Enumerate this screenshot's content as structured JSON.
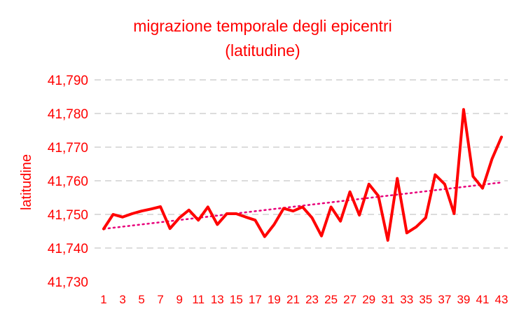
{
  "chart_data": {
    "type": "line",
    "title_lines": [
      "migrazione temporale degli epicentri",
      "(latitudine)"
    ],
    "ylabel": "latitudine",
    "xlabel": "",
    "ylim": [
      41.73,
      41.79
    ],
    "yticks": [
      "41,790",
      "41,780",
      "41,770",
      "41,760",
      "41,750",
      "41,740",
      "41,730"
    ],
    "ytick_values": [
      41.79,
      41.78,
      41.77,
      41.76,
      41.75,
      41.74,
      41.73
    ],
    "x": [
      1,
      2,
      3,
      4,
      5,
      6,
      7,
      8,
      9,
      10,
      11,
      12,
      13,
      14,
      15,
      16,
      17,
      18,
      19,
      20,
      21,
      22,
      23,
      24,
      25,
      26,
      27,
      28,
      29,
      30,
      31,
      32,
      33,
      34,
      35,
      36,
      37,
      38,
      39,
      40,
      41,
      42,
      43
    ],
    "xticks": [
      "1",
      "3",
      "5",
      "7",
      "9",
      "11",
      "13",
      "15",
      "17",
      "19",
      "21",
      "23",
      "25",
      "27",
      "29",
      "31",
      "33",
      "35",
      "37",
      "39",
      "41",
      "43"
    ],
    "xtick_values": [
      1,
      3,
      5,
      7,
      9,
      11,
      13,
      15,
      17,
      19,
      21,
      23,
      25,
      27,
      29,
      31,
      33,
      35,
      37,
      39,
      41,
      43
    ],
    "grid": true,
    "legend": "none",
    "series": [
      {
        "values": [
          41.7457,
          41.75,
          41.7492,
          41.7502,
          41.751,
          41.7516,
          41.7523,
          41.7458,
          41.749,
          41.7513,
          41.7483,
          41.7522,
          41.747,
          41.7502,
          41.7502,
          41.7492,
          41.7483,
          41.7434,
          41.747,
          41.7518,
          41.751,
          41.7522,
          41.749,
          41.7436,
          41.7522,
          41.748,
          41.7567,
          41.7498,
          41.759,
          41.7555,
          41.7423,
          41.7607,
          41.7445,
          41.7463,
          41.749,
          41.7618,
          41.759,
          41.7502,
          41.7812,
          41.7613,
          41.7578,
          41.7665,
          41.773
        ],
        "color": "#ff0000"
      }
    ],
    "trendline": {
      "type": "linear",
      "start": [
        1,
        41.7457
      ],
      "end": [
        43,
        41.7595
      ],
      "color": "#e8007a"
    }
  }
}
